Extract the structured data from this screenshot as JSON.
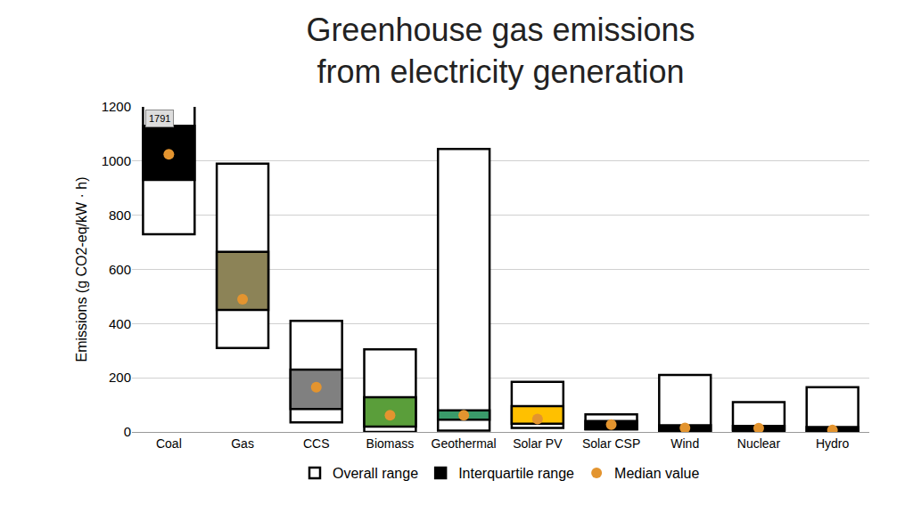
{
  "chart_data": {
    "type": "range_bar",
    "title": "Greenhouse gas emissions\nfrom electricity generation",
    "y_label": "Emissions (g CO2-eq/kW · h)",
    "categories": [
      "Coal",
      "Gas",
      "CCS",
      "Biomass",
      "Geothermal",
      "Solar PV",
      "Solar CSP",
      "Wind",
      "Nuclear",
      "Hydro"
    ],
    "overall": {
      "name": "Overall range",
      "color": "#ffffff",
      "low": [
        730,
        310,
        35,
        0,
        5,
        15,
        10,
        2,
        3,
        2
      ],
      "high": [
        1791,
        990,
        410,
        305,
        1045,
        185,
        65,
        210,
        110,
        165
      ]
    },
    "interquartile": {
      "name": "Interquartile range",
      "colors": [
        "#000000",
        "#8c8357",
        "#808080",
        "#5a9e3a",
        "#3a9a6a",
        "#ffc000",
        "#000000",
        "#000000",
        "#000000",
        "#000000"
      ],
      "low": [
        930,
        450,
        85,
        20,
        45,
        30,
        10,
        5,
        8,
        3
      ],
      "high": [
        1130,
        665,
        230,
        128,
        80,
        95,
        40,
        25,
        22,
        18
      ]
    },
    "median": {
      "name": "Median value",
      "color": "#e3942f",
      "marker": "circle",
      "values": [
        1025,
        490,
        165,
        62,
        62,
        48,
        27,
        15,
        14,
        7
      ]
    },
    "annotations": [
      {
        "category": "Coal",
        "series": "overall",
        "field": "high"
      }
    ],
    "ylim": [
      0,
      1200
    ],
    "yticks": [
      0,
      200,
      400,
      600,
      800,
      1000,
      1200
    ],
    "grid": true,
    "legend": "bottom"
  }
}
